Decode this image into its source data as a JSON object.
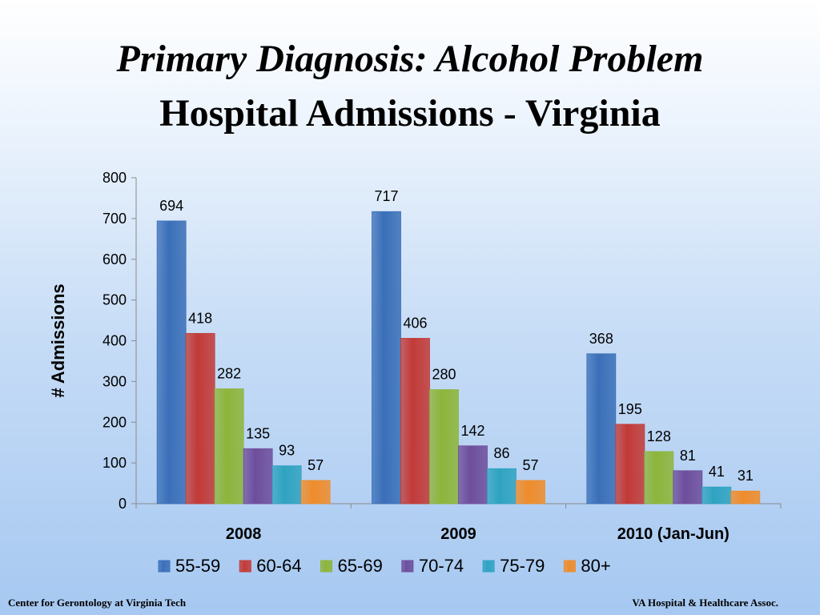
{
  "title_line1": "Primary Diagnosis: Alcohol Problem",
  "title_line2": "Hospital Admissions - Virginia",
  "footer_left": "Center for Gerontology at Virginia Tech",
  "footer_right": "VA Hospital  & Healthcare Assoc.",
  "chart_data": {
    "type": "bar",
    "title": "",
    "xlabel": "",
    "ylabel": "# Admissions",
    "ylim": [
      0,
      800
    ],
    "yticks": [
      0,
      100,
      200,
      300,
      400,
      500,
      600,
      700,
      800
    ],
    "categories": [
      "2008",
      "2009",
      "2010 (Jan-Jun)"
    ],
    "series": [
      {
        "name": "55-59",
        "color": "#3a6fb8",
        "values": [
          694,
          717,
          368
        ]
      },
      {
        "name": "60-64",
        "color": "#c23a37",
        "values": [
          418,
          406,
          195
        ]
      },
      {
        "name": "65-69",
        "color": "#8db53a",
        "values": [
          282,
          280,
          128
        ]
      },
      {
        "name": "70-74",
        "color": "#6e4e9c",
        "values": [
          135,
          142,
          81
        ]
      },
      {
        "name": "75-79",
        "color": "#2fa3c1",
        "values": [
          93,
          86,
          41
        ]
      },
      {
        "name": "80+",
        "color": "#ef8c2a",
        "values": [
          57,
          57,
          31
        ]
      }
    ],
    "grid": false,
    "legend_position": "bottom",
    "data_labels": true
  }
}
